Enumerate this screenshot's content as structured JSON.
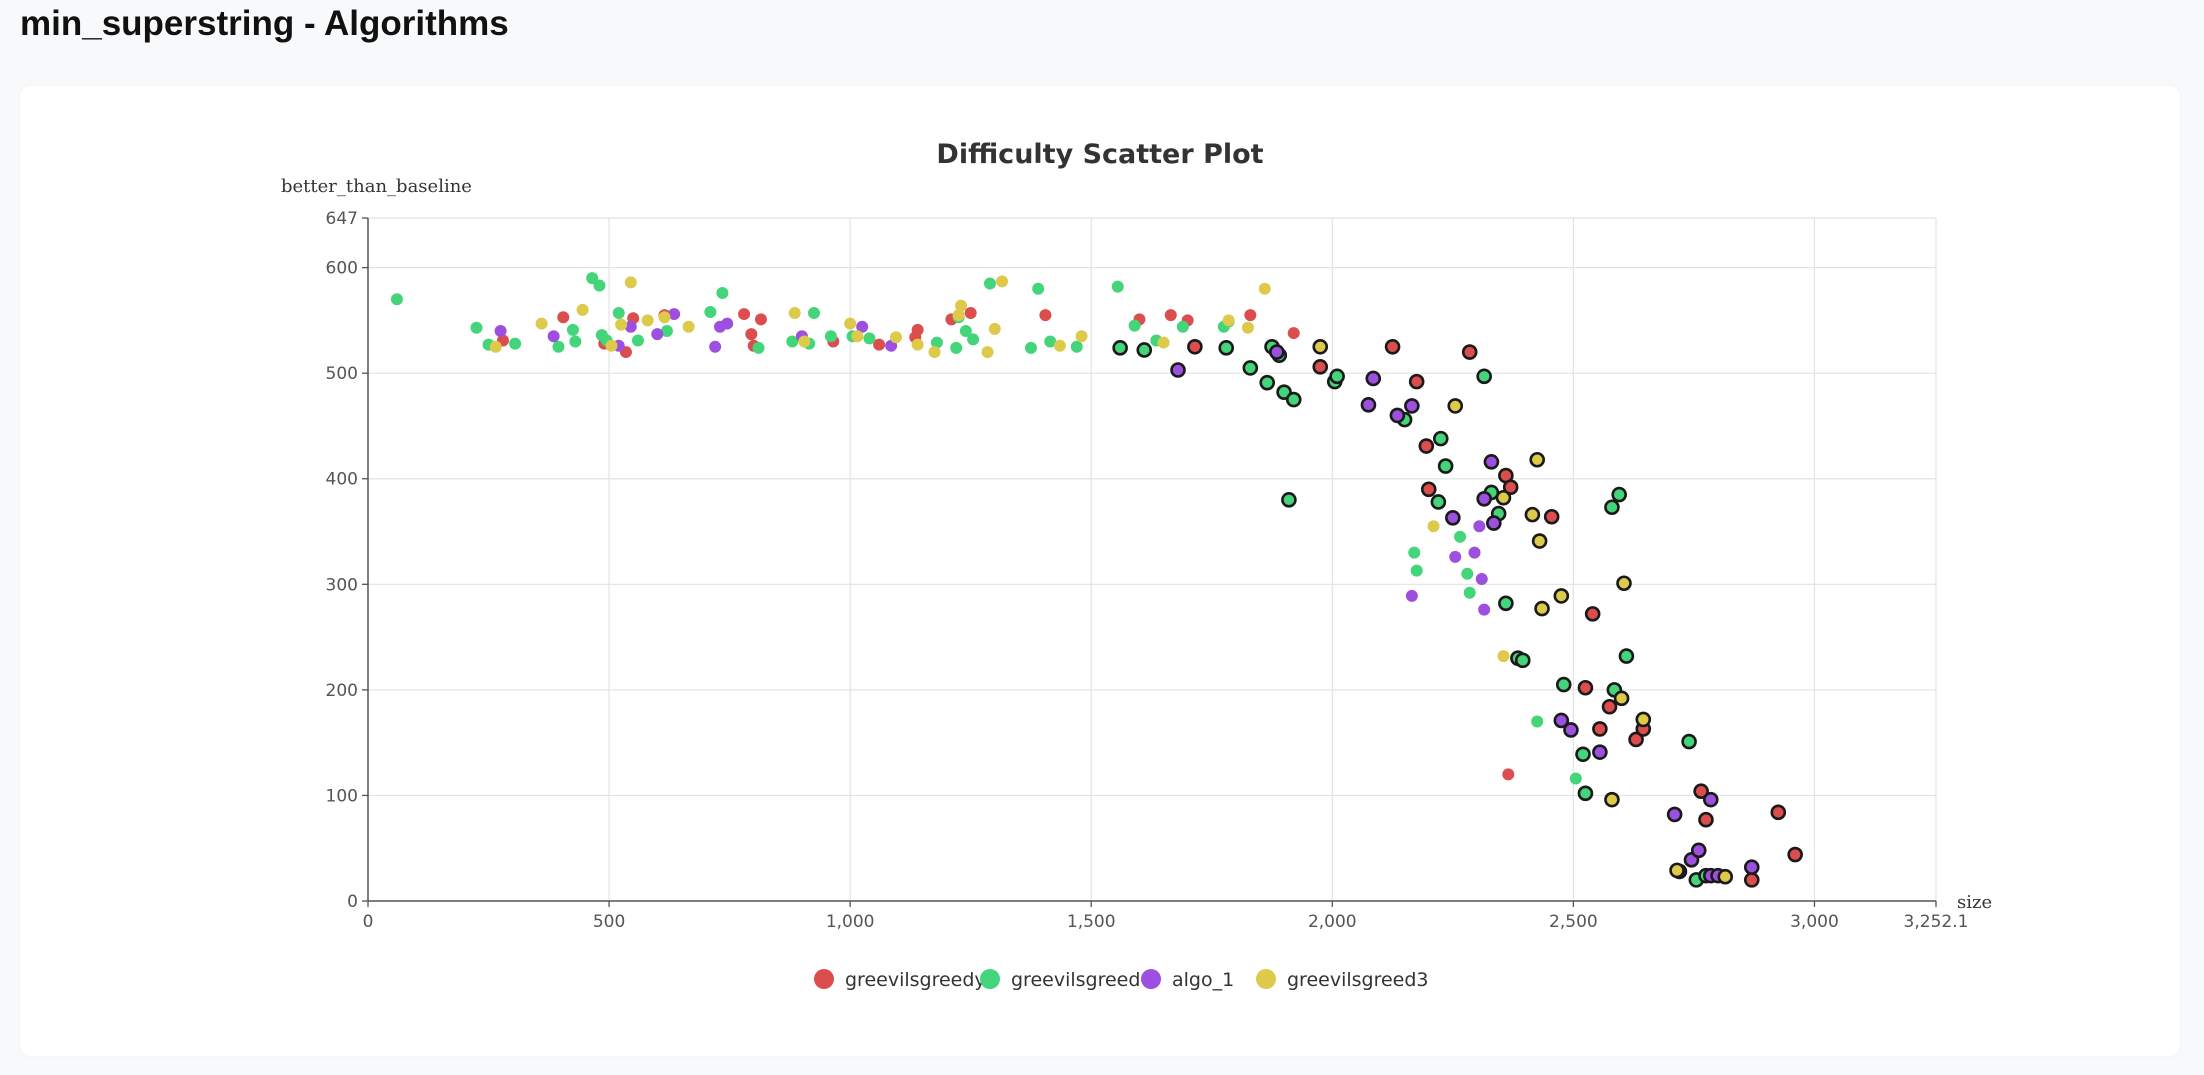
{
  "page": {
    "title": "min_superstring - Algorithms"
  },
  "chart_data": {
    "type": "scatter",
    "title": "Difficulty Scatter Plot",
    "xlabel": "size",
    "ylabel": "better_than_baseline",
    "xlim": [
      0,
      3252.1
    ],
    "ylim": [
      0,
      647
    ],
    "x_ticks": [
      {
        "value": 0,
        "label": "0"
      },
      {
        "value": 500,
        "label": "500"
      },
      {
        "value": 1000,
        "label": "1,000"
      },
      {
        "value": 1500,
        "label": "1,500"
      },
      {
        "value": 2000,
        "label": "2,000"
      },
      {
        "value": 2500,
        "label": "2,500"
      },
      {
        "value": 3000,
        "label": "3,000"
      },
      {
        "value": 3252.1,
        "label": "3,252.1"
      }
    ],
    "y_ticks": [
      {
        "value": 0,
        "label": "0"
      },
      {
        "value": 100,
        "label": "100"
      },
      {
        "value": 200,
        "label": "200"
      },
      {
        "value": 300,
        "label": "300"
      },
      {
        "value": 400,
        "label": "400"
      },
      {
        "value": 500,
        "label": "500"
      },
      {
        "value": 600,
        "label": "600"
      },
      {
        "value": 647,
        "label": "647"
      }
    ],
    "grid": true,
    "legend_position": "bottom-center",
    "series": [
      {
        "name": "greevilsgreedy",
        "color": "#dc4e4e",
        "points": [
          [
            280,
            531
          ],
          [
            405,
            553
          ],
          [
            490,
            528
          ],
          [
            535,
            520
          ],
          [
            550,
            552
          ],
          [
            615,
            555
          ],
          [
            780,
            556
          ],
          [
            795,
            537
          ],
          [
            800,
            526
          ],
          [
            815,
            551
          ],
          [
            965,
            530
          ],
          [
            1060,
            527
          ],
          [
            1135,
            534
          ],
          [
            1140,
            541
          ],
          [
            1210,
            551
          ],
          [
            1250,
            557
          ],
          [
            1405,
            555
          ],
          [
            1600,
            551
          ],
          [
            1665,
            555
          ],
          [
            1700,
            550
          ],
          [
            1920,
            538
          ],
          [
            1830,
            555
          ],
          [
            2365,
            120
          ]
        ],
        "bordered_points": [
          [
            1715,
            525
          ],
          [
            1975,
            506
          ],
          [
            2125,
            525
          ],
          [
            2175,
            492
          ],
          [
            2195,
            431
          ],
          [
            2200,
            390
          ],
          [
            2285,
            520
          ],
          [
            2360,
            403
          ],
          [
            2370,
            392
          ],
          [
            2455,
            364
          ],
          [
            2525,
            202
          ],
          [
            2540,
            272
          ],
          [
            2555,
            163
          ],
          [
            2575,
            184
          ],
          [
            2630,
            153
          ],
          [
            2645,
            163
          ],
          [
            2765,
            104
          ],
          [
            2775,
            77
          ],
          [
            2925,
            84
          ],
          [
            2870,
            20
          ],
          [
            2960,
            44
          ]
        ]
      },
      {
        "name": "greevilsgreed",
        "color": "#44d47a",
        "points": [
          [
            60,
            570
          ],
          [
            225,
            543
          ],
          [
            250,
            527
          ],
          [
            305,
            528
          ],
          [
            395,
            525
          ],
          [
            425,
            541
          ],
          [
            430,
            530
          ],
          [
            465,
            590
          ],
          [
            480,
            583
          ],
          [
            485,
            536
          ],
          [
            495,
            531
          ],
          [
            520,
            557
          ],
          [
            560,
            531
          ],
          [
            620,
            540
          ],
          [
            710,
            558
          ],
          [
            735,
            576
          ],
          [
            810,
            524
          ],
          [
            880,
            530
          ],
          [
            915,
            528
          ],
          [
            925,
            557
          ],
          [
            960,
            535
          ],
          [
            1005,
            535
          ],
          [
            1040,
            533
          ],
          [
            1180,
            529
          ],
          [
            1220,
            524
          ],
          [
            1225,
            553
          ],
          [
            1240,
            540
          ],
          [
            1255,
            532
          ],
          [
            1290,
            585
          ],
          [
            1375,
            524
          ],
          [
            1390,
            580
          ],
          [
            1415,
            530
          ],
          [
            1470,
            525
          ],
          [
            1555,
            582
          ],
          [
            1590,
            545
          ],
          [
            1635,
            531
          ],
          [
            1690,
            544
          ],
          [
            1775,
            544
          ],
          [
            1785,
            549
          ],
          [
            2170,
            330
          ],
          [
            2175,
            313
          ],
          [
            2265,
            345
          ],
          [
            2280,
            310
          ],
          [
            2285,
            292
          ],
          [
            2425,
            170
          ],
          [
            2505,
            116
          ]
        ],
        "bordered_points": [
          [
            1560,
            524
          ],
          [
            1610,
            522
          ],
          [
            1780,
            524
          ],
          [
            1830,
            505
          ],
          [
            1865,
            491
          ],
          [
            1875,
            525
          ],
          [
            1890,
            517
          ],
          [
            1900,
            482
          ],
          [
            1910,
            380
          ],
          [
            1920,
            475
          ],
          [
            2005,
            492
          ],
          [
            2010,
            497
          ],
          [
            2150,
            456
          ],
          [
            2220,
            378
          ],
          [
            2225,
            438
          ],
          [
            2235,
            412
          ],
          [
            2315,
            497
          ],
          [
            2330,
            387
          ],
          [
            2345,
            367
          ],
          [
            2360,
            282
          ],
          [
            2385,
            230
          ],
          [
            2395,
            228
          ],
          [
            2480,
            205
          ],
          [
            2520,
            139
          ],
          [
            2525,
            102
          ],
          [
            2580,
            373
          ],
          [
            2585,
            200
          ],
          [
            2595,
            385
          ],
          [
            2610,
            232
          ],
          [
            2740,
            151
          ],
          [
            2755,
            20
          ],
          [
            2775,
            24
          ],
          [
            2720,
            28
          ]
        ]
      },
      {
        "name": "algo_1",
        "color": "#9d50df",
        "points": [
          [
            275,
            540
          ],
          [
            385,
            535
          ],
          [
            520,
            526
          ],
          [
            545,
            544
          ],
          [
            600,
            537
          ],
          [
            635,
            556
          ],
          [
            720,
            525
          ],
          [
            730,
            544
          ],
          [
            745,
            547
          ],
          [
            900,
            535
          ],
          [
            1025,
            544
          ],
          [
            1085,
            526
          ],
          [
            2165,
            289
          ],
          [
            2255,
            326
          ],
          [
            2295,
            330
          ],
          [
            2305,
            355
          ],
          [
            2315,
            276
          ],
          [
            2310,
            305
          ]
        ],
        "bordered_points": [
          [
            1680,
            503
          ],
          [
            1885,
            520
          ],
          [
            2085,
            495
          ],
          [
            2075,
            470
          ],
          [
            2135,
            460
          ],
          [
            2165,
            469
          ],
          [
            2250,
            363
          ],
          [
            2315,
            381
          ],
          [
            2330,
            416
          ],
          [
            2335,
            358
          ],
          [
            2475,
            171
          ],
          [
            2495,
            162
          ],
          [
            2555,
            141
          ],
          [
            2710,
            82
          ],
          [
            2785,
            96
          ],
          [
            2745,
            39
          ],
          [
            2760,
            48
          ],
          [
            2785,
            24
          ],
          [
            2800,
            24
          ],
          [
            2870,
            32
          ]
        ]
      },
      {
        "name": "greevilsgreed3",
        "color": "#ddc94a",
        "points": [
          [
            265,
            525
          ],
          [
            360,
            547
          ],
          [
            445,
            560
          ],
          [
            505,
            526
          ],
          [
            525,
            546
          ],
          [
            545,
            586
          ],
          [
            580,
            550
          ],
          [
            615,
            553
          ],
          [
            665,
            544
          ],
          [
            885,
            557
          ],
          [
            905,
            530
          ],
          [
            1000,
            547
          ],
          [
            1015,
            535
          ],
          [
            1095,
            534
          ],
          [
            1140,
            527
          ],
          [
            1175,
            520
          ],
          [
            1225,
            555
          ],
          [
            1230,
            564
          ],
          [
            1285,
            520
          ],
          [
            1300,
            542
          ],
          [
            1315,
            587
          ],
          [
            1435,
            526
          ],
          [
            1480,
            535
          ],
          [
            1650,
            529
          ],
          [
            1785,
            550
          ],
          [
            1825,
            543
          ],
          [
            1860,
            580
          ],
          [
            2210,
            355
          ],
          [
            2355,
            232
          ]
        ],
        "bordered_points": [
          [
            1975,
            525
          ],
          [
            2255,
            469
          ],
          [
            2355,
            382
          ],
          [
            2415,
            366
          ],
          [
            2425,
            418
          ],
          [
            2430,
            341
          ],
          [
            2435,
            277
          ],
          [
            2475,
            289
          ],
          [
            2580,
            96
          ],
          [
            2600,
            192
          ],
          [
            2605,
            301
          ],
          [
            2645,
            172
          ],
          [
            2715,
            29
          ],
          [
            2815,
            23
          ]
        ]
      }
    ]
  }
}
